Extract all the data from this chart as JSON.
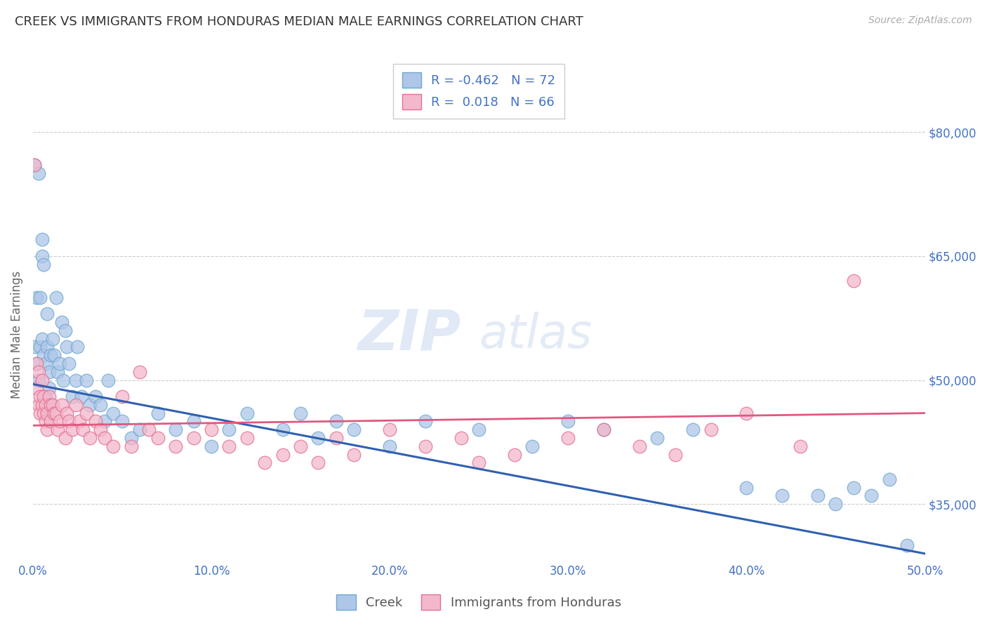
{
  "title": "CREEK VS IMMIGRANTS FROM HONDURAS MEDIAN MALE EARNINGS CORRELATION CHART",
  "source": "Source: ZipAtlas.com",
  "ylabel": "Median Male Earnings",
  "xlim": [
    0.0,
    0.5
  ],
  "ylim": [
    28000,
    83000
  ],
  "yticks": [
    35000,
    50000,
    65000,
    80000
  ],
  "ytick_labels": [
    "$35,000",
    "$50,000",
    "$65,000",
    "$80,000"
  ],
  "xticks": [
    0.0,
    0.1,
    0.2,
    0.3,
    0.4,
    0.5
  ],
  "xtick_labels": [
    "0.0%",
    "10.0%",
    "20.0%",
    "30.0%",
    "40.0%",
    "50.0%"
  ],
  "creek_color": "#aec6e8",
  "creek_edge_color": "#6fa8d0",
  "honduras_color": "#f4b8cc",
  "honduras_edge_color": "#e07090",
  "blue_line_color": "#3060b0",
  "pink_line_color": "#e05880",
  "R_creek": -0.462,
  "N_creek": 72,
  "R_honduras": 0.018,
  "N_honduras": 66,
  "legend_label_creek": "Creek",
  "legend_label_honduras": "Immigrants from Honduras",
  "watermark_zip": "ZIP",
  "watermark_atlas": "atlas",
  "background_color": "#ffffff",
  "grid_color": "#cccccc",
  "title_color": "#333333",
  "axis_color": "#4472c4",
  "creek_x": [
    0.001,
    0.001,
    0.002,
    0.002,
    0.003,
    0.003,
    0.004,
    0.004,
    0.005,
    0.005,
    0.005,
    0.006,
    0.006,
    0.007,
    0.007,
    0.008,
    0.008,
    0.009,
    0.009,
    0.01,
    0.01,
    0.011,
    0.012,
    0.013,
    0.014,
    0.015,
    0.016,
    0.017,
    0.018,
    0.019,
    0.02,
    0.022,
    0.024,
    0.025,
    0.027,
    0.03,
    0.032,
    0.035,
    0.038,
    0.04,
    0.042,
    0.045,
    0.05,
    0.055,
    0.06,
    0.07,
    0.08,
    0.09,
    0.1,
    0.11,
    0.12,
    0.14,
    0.15,
    0.16,
    0.17,
    0.18,
    0.2,
    0.22,
    0.25,
    0.28,
    0.3,
    0.32,
    0.35,
    0.37,
    0.4,
    0.42,
    0.44,
    0.45,
    0.46,
    0.47,
    0.48,
    0.49
  ],
  "creek_y": [
    76000,
    54000,
    60000,
    52000,
    75000,
    50000,
    54000,
    60000,
    65000,
    67000,
    55000,
    53000,
    64000,
    48000,
    52000,
    54000,
    58000,
    51000,
    49000,
    53000,
    47000,
    55000,
    53000,
    60000,
    51000,
    52000,
    57000,
    50000,
    56000,
    54000,
    52000,
    48000,
    50000,
    54000,
    48000,
    50000,
    47000,
    48000,
    47000,
    45000,
    50000,
    46000,
    45000,
    43000,
    44000,
    46000,
    44000,
    45000,
    42000,
    44000,
    46000,
    44000,
    46000,
    43000,
    45000,
    44000,
    42000,
    45000,
    44000,
    42000,
    45000,
    44000,
    43000,
    44000,
    37000,
    36000,
    36000,
    35000,
    37000,
    36000,
    38000,
    30000
  ],
  "honduras_x": [
    0.001,
    0.002,
    0.002,
    0.003,
    0.003,
    0.004,
    0.004,
    0.005,
    0.005,
    0.006,
    0.006,
    0.007,
    0.007,
    0.008,
    0.008,
    0.009,
    0.01,
    0.01,
    0.011,
    0.012,
    0.013,
    0.014,
    0.015,
    0.016,
    0.018,
    0.019,
    0.02,
    0.022,
    0.024,
    0.026,
    0.028,
    0.03,
    0.032,
    0.035,
    0.038,
    0.04,
    0.045,
    0.05,
    0.055,
    0.06,
    0.065,
    0.07,
    0.08,
    0.09,
    0.1,
    0.11,
    0.12,
    0.13,
    0.14,
    0.15,
    0.16,
    0.17,
    0.18,
    0.2,
    0.22,
    0.24,
    0.25,
    0.27,
    0.3,
    0.32,
    0.34,
    0.36,
    0.38,
    0.4,
    0.43,
    0.46
  ],
  "honduras_y": [
    76000,
    52000,
    49000,
    51000,
    47000,
    48000,
    46000,
    50000,
    47000,
    46000,
    48000,
    47000,
    45000,
    46000,
    44000,
    48000,
    47000,
    45000,
    47000,
    46000,
    46000,
    44000,
    45000,
    47000,
    43000,
    46000,
    45000,
    44000,
    47000,
    45000,
    44000,
    46000,
    43000,
    45000,
    44000,
    43000,
    42000,
    48000,
    42000,
    51000,
    44000,
    43000,
    42000,
    43000,
    44000,
    42000,
    43000,
    40000,
    41000,
    42000,
    40000,
    43000,
    41000,
    44000,
    42000,
    43000,
    40000,
    41000,
    43000,
    44000,
    42000,
    41000,
    44000,
    46000,
    42000,
    62000
  ]
}
